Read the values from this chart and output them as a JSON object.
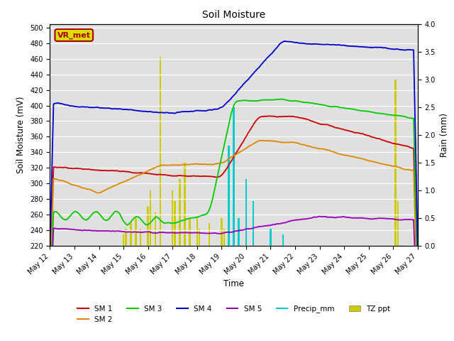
{
  "title": "Soil Moisture",
  "xlabel": "Time",
  "ylabel_left": "Soil Moisture (mV)",
  "ylabel_right": "Rain (mm)",
  "ylim_left": [
    220,
    505
  ],
  "ylim_right": [
    0.0,
    4.0
  ],
  "yticks_left": [
    220,
    240,
    260,
    280,
    300,
    320,
    340,
    360,
    380,
    400,
    420,
    440,
    460,
    480,
    500
  ],
  "yticks_right": [
    0.0,
    0.5,
    1.0,
    1.5,
    2.0,
    2.5,
    3.0,
    3.5,
    4.0
  ],
  "x_labels": [
    "May 12",
    "May 13",
    "May 14",
    "May 15",
    "May 16",
    "May 17",
    "May 18",
    "May 19",
    "May 20",
    "May 21",
    "May 22",
    "May 23",
    "May 24",
    "May 25",
    "May 26",
    "May 27"
  ],
  "colors": {
    "SM1": "#cc0000",
    "SM2": "#dd8800",
    "SM3": "#00cc00",
    "SM4": "#0000cc",
    "SM5": "#9900bb",
    "Precip_mm": "#00cccc",
    "TZ_ppt": "#cccc00",
    "bg": "#e0e0e0"
  },
  "annotation_text": "VR_met",
  "annotation_color": "#aa0000",
  "annotation_bg": "#dddd00"
}
